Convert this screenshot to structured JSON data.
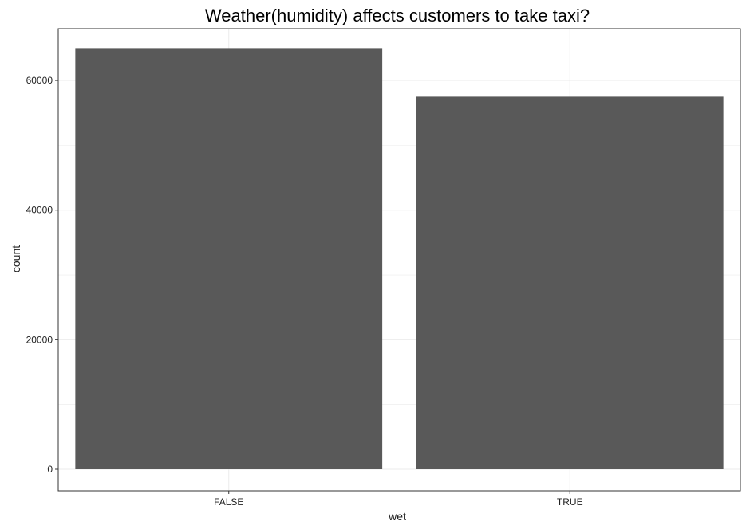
{
  "chart_data": {
    "type": "bar",
    "title": "Weather(humidity) affects customers to take taxi?",
    "xlabel": "wet",
    "ylabel": "count",
    "categories": [
      "FALSE",
      "TRUE"
    ],
    "values": [
      65000,
      57500
    ],
    "ylim": [
      0,
      68000
    ],
    "yticks": [
      0,
      20000,
      40000,
      60000
    ],
    "ytick_labels": [
      "0",
      "20000",
      "40000",
      "60000"
    ],
    "grid": true,
    "bar_color": "#595959",
    "panel_border_color": "#333333",
    "grid_color": "#ebebeb"
  }
}
